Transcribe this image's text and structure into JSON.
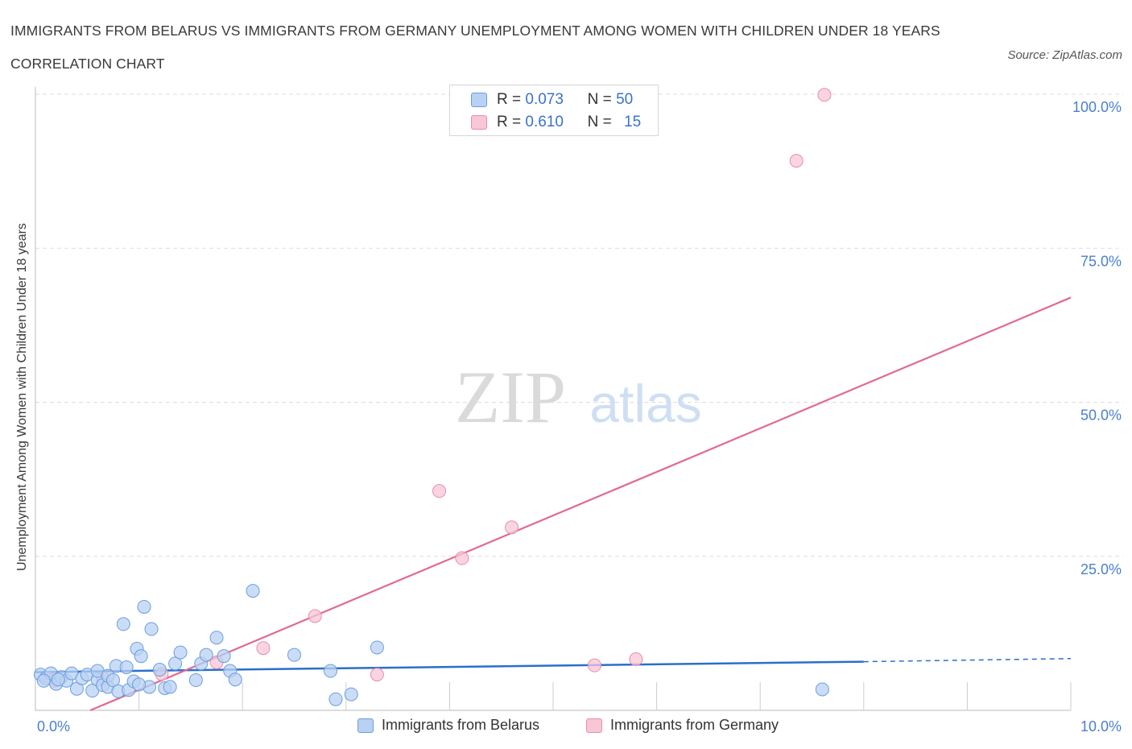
{
  "title": "IMMIGRANTS FROM BELARUS VS IMMIGRANTS FROM GERMANY UNEMPLOYMENT AMONG WOMEN WITH CHILDREN UNDER 18 YEARS CORRELATION CHART",
  "source": "Source: ZipAtlas.com",
  "watermark": {
    "zip": "ZIP",
    "atlas": "atlas"
  },
  "legend": {
    "r_label": "R =",
    "n_label": "N =",
    "rows": [
      {
        "r": "0.073",
        "n": "50"
      },
      {
        "r": "0.610",
        "n": "15"
      }
    ]
  },
  "colors": {
    "belarus_fill": "#b9d1f3",
    "belarus_stroke": "#6a9ee0",
    "belarus_line": "#2a6fcc",
    "germany_fill": "#f8c6d5",
    "germany_stroke": "#e58fab",
    "germany_line": "#e06a93",
    "tick_text": "#4a7fd0"
  },
  "chart_data": {
    "type": "scatter",
    "title": "IMMIGRANTS FROM BELARUS VS IMMIGRANTS FROM GERMANY UNEMPLOYMENT AMONG WOMEN WITH CHILDREN UNDER 18 YEARS CORRELATION CHART",
    "xlabel": "",
    "ylabel": "Unemployment Among Women with Children Under 18 years",
    "xlim": [
      0,
      10
    ],
    "ylim": [
      0,
      100
    ],
    "x_tick_labels": [
      "0.0%",
      "10.0%"
    ],
    "y_ticks": [
      25,
      50,
      75,
      100
    ],
    "y_tick_labels": [
      "25.0%",
      "50.0%",
      "75.0%",
      "100.0%"
    ],
    "legend_placement": "top-center",
    "series": [
      {
        "name": "Immigrants from Belarus",
        "R": 0.073,
        "N": 50,
        "trend": {
          "x_start": 0.0,
          "y_start": 6.2,
          "x_solid_end": 8.0,
          "y_solid_end": 7.9,
          "x_end": 10.0,
          "y_end": 8.4
        },
        "points": [
          [
            0.05,
            5.8
          ],
          [
            0.1,
            5.2
          ],
          [
            0.15,
            6.0
          ],
          [
            0.2,
            4.3
          ],
          [
            0.25,
            5.4
          ],
          [
            0.3,
            4.8
          ],
          [
            0.35,
            6.0
          ],
          [
            0.4,
            3.5
          ],
          [
            0.45,
            5.2
          ],
          [
            0.5,
            5.8
          ],
          [
            0.55,
            3.2
          ],
          [
            0.6,
            5.0
          ],
          [
            0.6,
            6.4
          ],
          [
            0.65,
            4.1
          ],
          [
            0.7,
            3.8
          ],
          [
            0.7,
            5.6
          ],
          [
            0.75,
            4.9
          ],
          [
            0.78,
            7.2
          ],
          [
            0.8,
            3.1
          ],
          [
            0.85,
            14.0
          ],
          [
            0.88,
            7.0
          ],
          [
            0.9,
            3.3
          ],
          [
            0.95,
            4.7
          ],
          [
            0.98,
            10.0
          ],
          [
            1.02,
            8.8
          ],
          [
            1.05,
            16.8
          ],
          [
            1.1,
            3.8
          ],
          [
            1.12,
            13.2
          ],
          [
            1.2,
            6.6
          ],
          [
            1.25,
            3.6
          ],
          [
            1.3,
            3.8
          ],
          [
            1.35,
            7.6
          ],
          [
            1.4,
            9.4
          ],
          [
            1.55,
            4.9
          ],
          [
            1.6,
            7.6
          ],
          [
            1.65,
            9.0
          ],
          [
            1.75,
            11.8
          ],
          [
            1.82,
            8.8
          ],
          [
            1.88,
            6.4
          ],
          [
            1.93,
            5.0
          ],
          [
            2.1,
            19.4
          ],
          [
            2.5,
            9.0
          ],
          [
            2.85,
            6.4
          ],
          [
            2.9,
            1.8
          ],
          [
            3.05,
            2.6
          ],
          [
            3.3,
            10.2
          ],
          [
            7.6,
            3.4
          ],
          [
            0.08,
            4.8
          ],
          [
            0.22,
            5.0
          ],
          [
            1.0,
            4.2
          ]
        ]
      },
      {
        "name": "Immigrants from Germany",
        "R": 0.61,
        "N": 15,
        "trend": {
          "x_start": 0.53,
          "y_start": 0.0,
          "x_end": 10.0,
          "y_end": 67.0
        },
        "points": [
          [
            0.12,
            5.2
          ],
          [
            0.18,
            4.8
          ],
          [
            0.65,
            5.2
          ],
          [
            1.22,
            5.9
          ],
          [
            1.75,
            7.8
          ],
          [
            2.2,
            10.1
          ],
          [
            2.7,
            15.3
          ],
          [
            3.3,
            5.8
          ],
          [
            3.9,
            35.6
          ],
          [
            4.12,
            24.7
          ],
          [
            4.6,
            29.7
          ],
          [
            5.4,
            7.3
          ],
          [
            5.8,
            8.3
          ],
          [
            7.35,
            89.2
          ],
          [
            7.62,
            99.9
          ]
        ]
      }
    ]
  },
  "bottom_legend": [
    "Immigrants from Belarus",
    "Immigrants from Germany"
  ]
}
